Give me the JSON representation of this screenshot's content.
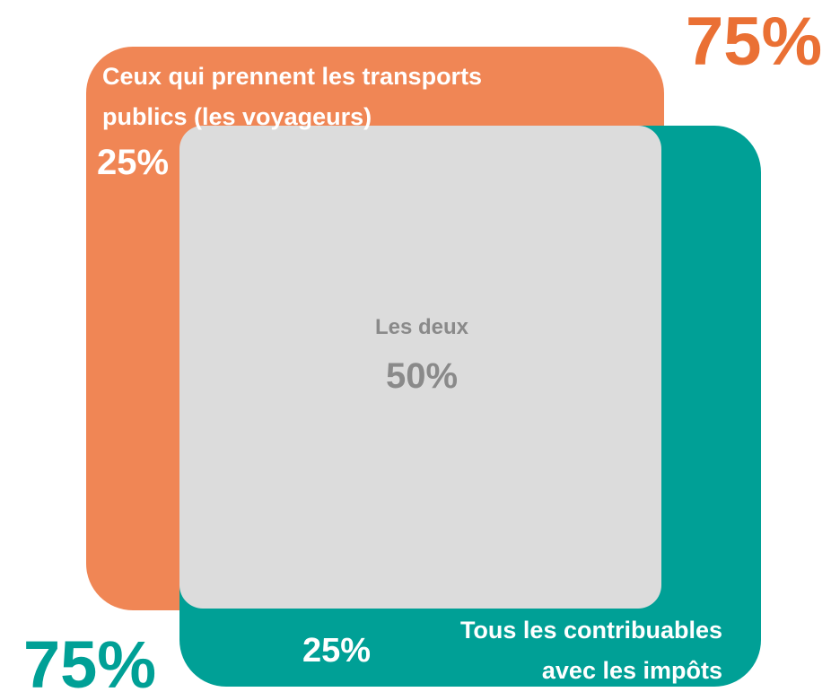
{
  "sets": [
    {
      "label_lines": [
        "Ceux qui prennent les transports",
        "publics (les voyageurs)"
      ],
      "only": "25%",
      "total": "75%"
    },
    {
      "label_lines": [
        "Tous les contribuables",
        "avec les impôts"
      ],
      "only": "25%",
      "total": "75%"
    }
  ],
  "intersection": {
    "label": "Les deux",
    "value": "50%"
  }
}
